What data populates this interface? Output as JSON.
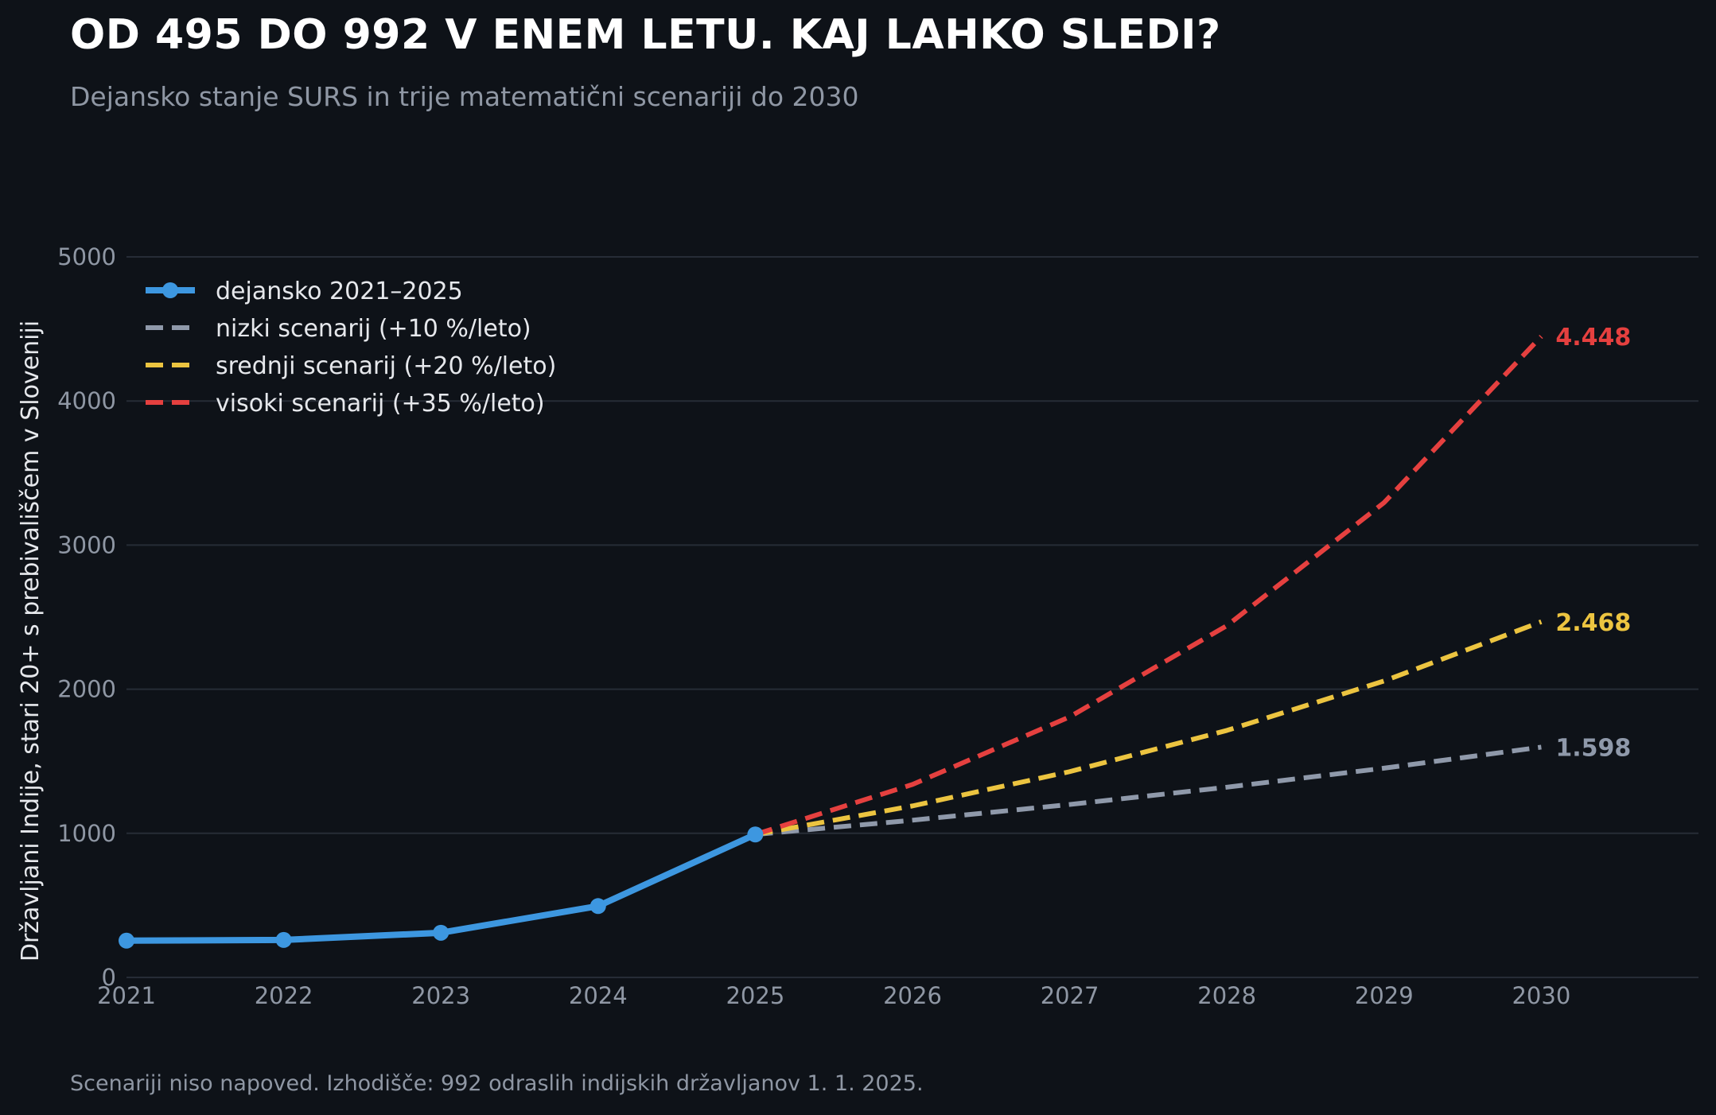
{
  "title": "OD 495 DO 992 V ENEM LETU. KAJ LAHKO SLEDI?",
  "subtitle": "Dejansko stanje SURS in trije matematični scenariji do 2030",
  "footnote": "Scenariji niso napoved. Izhodišče: 992 odraslih indijskih državljanov 1. 1. 2025.",
  "colors": {
    "background": "#0e1218",
    "grid": "#262c36",
    "actual": "#3d97e0",
    "low": "#8f99aa",
    "mid": "#ecc440",
    "high": "#e5403f"
  },
  "chart_data": {
    "type": "line",
    "ylabel": "Državljani Indije, stari 20+ s prebivališčem v Sloveniji",
    "xlim": [
      2021,
      2031
    ],
    "ylim": [
      0,
      5000
    ],
    "x_ticks": [
      "2021",
      "2022",
      "2023",
      "2024",
      "2025",
      "2026",
      "2027",
      "2028",
      "2029",
      "2030"
    ],
    "y_ticks": [
      "0",
      "1000",
      "2000",
      "3000",
      "4000",
      "5000"
    ],
    "grid": "horizontal",
    "legend_position": "top-left",
    "series": [
      {
        "name": "dejansko 2021–2025",
        "style": "solid-markers",
        "color": "#3d97e0",
        "x": [
          2021,
          2022,
          2023,
          2024,
          2025
        ],
        "values": [
          255,
          260,
          310,
          495,
          992
        ]
      },
      {
        "name": "nizki scenarij (+10 %/leto)",
        "style": "dashed",
        "color": "#8f99aa",
        "x": [
          2025,
          2026,
          2027,
          2028,
          2029,
          2030
        ],
        "values": [
          992,
          1091,
          1200,
          1320,
          1452,
          1598
        ],
        "end_label": "1.598"
      },
      {
        "name": "srednji scenarij (+20 %/leto)",
        "style": "dashed",
        "color": "#ecc440",
        "x": [
          2025,
          2026,
          2027,
          2028,
          2029,
          2030
        ],
        "values": [
          992,
          1190,
          1428,
          1714,
          2057,
          2468
        ],
        "end_label": "2.468"
      },
      {
        "name": "visoki scenarij (+35 %/leto)",
        "style": "dashed",
        "color": "#e5403f",
        "x": [
          2025,
          2026,
          2027,
          2028,
          2029,
          2030
        ],
        "values": [
          992,
          1339,
          1808,
          2441,
          3295,
          4448
        ],
        "end_label": "4.448"
      }
    ]
  }
}
